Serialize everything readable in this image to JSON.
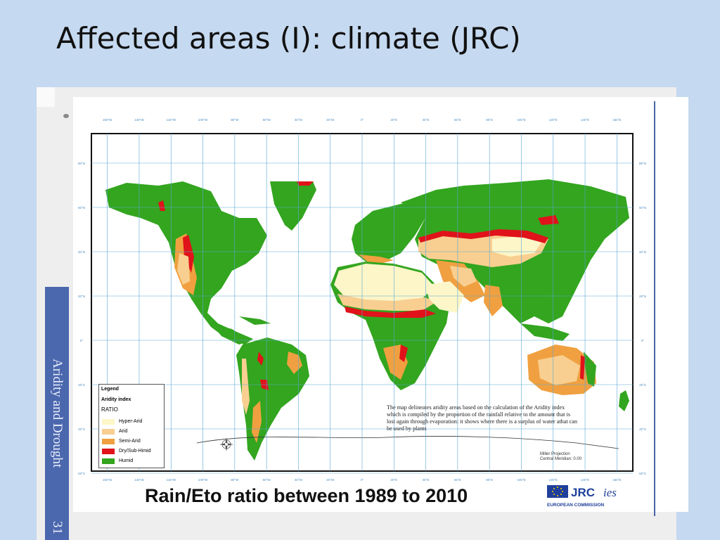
{
  "slide": {
    "title": "Affected areas (I): climate (JRC)",
    "side_label": "Aridity and Drought",
    "page_number": "31"
  },
  "map": {
    "caption": "Rain/Eto ratio between 1989 to 2010",
    "top_longitude_labels": [
      "160°W",
      "140°W",
      "120°W",
      "100°W",
      "80°W",
      "60°W",
      "40°W",
      "20°W",
      "0°",
      "20°E",
      "40°E",
      "60°E",
      "80°E",
      "100°E",
      "120°E",
      "140°E",
      "160°E"
    ],
    "latitude_labels": [
      "80°N",
      "60°N",
      "40°N",
      "20°N",
      "0°",
      "20°S",
      "40°S",
      "60°S"
    ],
    "legend": {
      "title": "Legend",
      "index_label": "Aridity index",
      "ratio_label": "RATIO",
      "items": [
        {
          "label": "Hyper-Arid",
          "color": "#fdf6c8"
        },
        {
          "label": "Arid",
          "color": "#f8cf90"
        },
        {
          "label": "Semi-Arid",
          "color": "#f0a040"
        },
        {
          "label": "Dry/Sub-Himid",
          "color": "#e0121a"
        },
        {
          "label": "Humid",
          "color": "#33a51f"
        }
      ]
    },
    "note": "The map delineates aridity areas based on the calculation of the Aridity index which is compiled by the proportion of the rainfall relative to the amount that is lost again through evaporation: it shows where there is a surplus of water athat can be used by plants",
    "projection": "Miller Projection",
    "central_meridian": "Central Meridian: 0.00",
    "colors": {
      "ocean": "#ffffff",
      "grid": "#5aa7d8",
      "humid": "#33a51f",
      "dry": "#e0121a",
      "semi": "#f0a040",
      "arid": "#f8cf90",
      "hyper": "#fdf6c8"
    }
  },
  "logo": {
    "name": "JRC",
    "suffix": "ies",
    "org": "EUROPEAN COMMISSION"
  }
}
